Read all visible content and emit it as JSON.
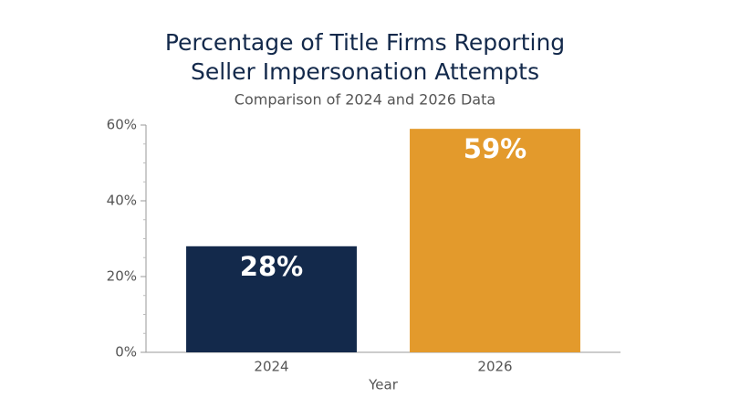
{
  "chart_data": {
    "type": "bar",
    "title": [
      "Percentage of Title Firms Reporting",
      "Seller Impersonation Attempts"
    ],
    "subtitle": "Comparison of 2024 and 2026 Data",
    "x_label": "Year",
    "categories": [
      "2024",
      "2026"
    ],
    "values": [
      28,
      59
    ],
    "value_labels": [
      "28%",
      "59%"
    ],
    "colors": [
      "#13294b",
      "#e39a2c"
    ],
    "ylim": [
      0,
      60
    ],
    "yticks": [
      {
        "value": 0,
        "label": "0%"
      },
      {
        "value": 20,
        "label": "20%"
      },
      {
        "value": 40,
        "label": "40%"
      },
      {
        "value": 60,
        "label": "60%"
      }
    ],
    "minor_yticks": [
      5,
      10,
      15,
      25,
      30,
      35,
      45,
      50,
      55
    ]
  }
}
